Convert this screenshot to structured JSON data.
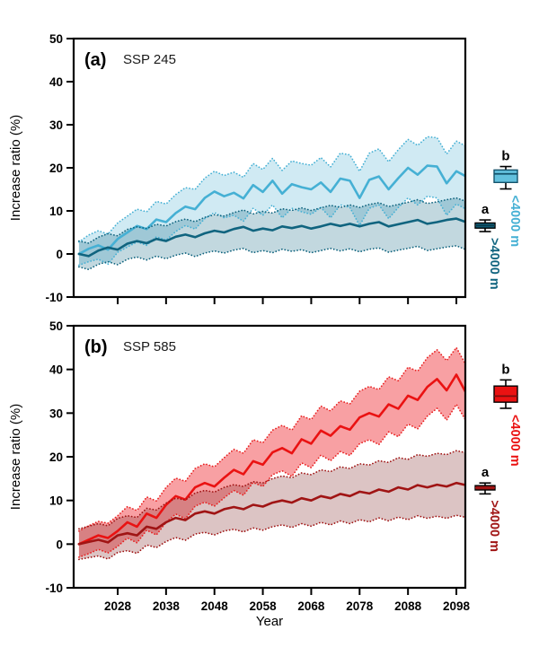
{
  "figure": {
    "background": "#ffffff",
    "axis_color": "#000000"
  },
  "chart_data": {
    "type": "line",
    "title": "",
    "xlabel": "Year",
    "ylabel": "Increase ratio (%)",
    "xlim": [
      2019,
      2100
    ],
    "ylim": [
      -10,
      50
    ],
    "grid": false,
    "x_tick_labels": [
      "2028",
      "2038",
      "2048",
      "2058",
      "2068",
      "2078",
      "2088",
      "2098"
    ],
    "x_tick_years": [
      2028,
      2038,
      2048,
      2058,
      2068,
      2078,
      2088,
      2098
    ],
    "y_tick_labels": [
      "50",
      "40",
      "30",
      "20",
      "10",
      "0",
      "-10"
    ],
    "y_tick_values": [
      50,
      40,
      30,
      20,
      10,
      0,
      -10
    ],
    "years": [
      2020,
      2022,
      2024,
      2026,
      2028,
      2030,
      2032,
      2034,
      2036,
      2038,
      2040,
      2042,
      2044,
      2046,
      2048,
      2050,
      2052,
      2054,
      2056,
      2058,
      2060,
      2062,
      2064,
      2066,
      2068,
      2070,
      2072,
      2074,
      2076,
      2078,
      2080,
      2082,
      2084,
      2086,
      2088,
      2090,
      2092,
      2094,
      2096,
      2098,
      2100
    ],
    "band_meaning": "shaded envelope with dotted borders around ensemble mean",
    "panels": [
      {
        "id": "a",
        "label": "(a)",
        "scenario": "SSP 245",
        "series": [
          {
            "name": "<4000 m",
            "significance": "b",
            "line_color": "#45b0d4",
            "dot_color": "#45b0d4",
            "band_fill": "rgba(120,195,220,0.35)",
            "mean": [
              0,
              1.2,
              2.0,
              1.0,
              3.5,
              5.0,
              6.5,
              5.8,
              8.0,
              7.4,
              9.5,
              11.0,
              10.4,
              13.0,
              14.5,
              13.4,
              14.2,
              12.9,
              16.0,
              14.4,
              17.0,
              14.0,
              16.2,
              15.5,
              15.0,
              16.6,
              14.4,
              17.5,
              17.0,
              13.0,
              17.2,
              18.0,
              15.0,
              17.6,
              20.0,
              18.4,
              20.5,
              20.3,
              16.4,
              19.2,
              18.0
            ],
            "upper": [
              2.8,
              4.4,
              5.4,
              4.6,
              7.2,
              8.8,
              10.4,
              9.8,
              12.2,
              11.6,
              13.8,
              15.4,
              15.0,
              17.6,
              19.2,
              18.2,
              19.0,
              17.8,
              21.0,
              19.6,
              22.2,
              19.4,
              21.6,
              21.0,
              20.6,
              22.4,
              20.2,
              23.4,
              23.0,
              19.2,
              23.4,
              24.4,
              21.4,
              24.2,
              26.6,
              25.2,
              27.2,
              27.0,
              23.2,
              26.2,
              25.0
            ],
            "lower": [
              -2.6,
              -1.8,
              -1.2,
              -2.4,
              0.4,
              1.6,
              2.8,
              2.0,
              4.0,
              3.2,
              5.2,
              6.6,
              5.8,
              8.2,
              9.6,
              8.4,
              9.0,
              7.6,
              10.6,
              9.0,
              11.4,
              8.4,
              10.6,
              9.8,
              9.2,
              10.8,
              8.4,
              11.4,
              10.8,
              6.6,
              10.6,
              11.4,
              8.2,
              10.8,
              13.0,
              11.4,
              13.4,
              13.0,
              9.0,
              11.6,
              10.4
            ],
            "box": {
              "whislo": 15.1,
              "q1": 16.6,
              "med": 18.6,
              "q3": 19.5,
              "whishi": 20.3,
              "fill": "#62c0dd",
              "edge": "#14536b",
              "median_color": "#14536b"
            }
          },
          {
            "name": ">4000 m",
            "significance": "a",
            "line_color": "#10647f",
            "dot_color": "#10647f",
            "band_fill": "rgba(30,110,135,0.27)",
            "mean": [
              0,
              -0.5,
              0.8,
              1.5,
              1.0,
              2.4,
              3.0,
              2.5,
              3.5,
              3.0,
              4.0,
              4.5,
              3.9,
              4.8,
              5.4,
              5.0,
              5.8,
              6.3,
              5.4,
              5.9,
              5.5,
              6.4,
              6.0,
              6.5,
              5.9,
              6.4,
              7.0,
              6.5,
              7.0,
              6.4,
              7.0,
              7.4,
              6.4,
              6.9,
              7.4,
              7.9,
              7.0,
              7.4,
              7.9,
              8.2,
              7.4
            ],
            "upper": [
              3.0,
              2.5,
              3.9,
              4.7,
              4.2,
              5.7,
              6.3,
              5.9,
              6.9,
              6.5,
              7.5,
              8.1,
              7.5,
              8.5,
              9.1,
              8.8,
              9.6,
              10.2,
              9.3,
              9.9,
              9.5,
              10.5,
              10.1,
              10.7,
              10.1,
              10.7,
              11.3,
              10.8,
              11.4,
              10.8,
              11.5,
              11.9,
              11.0,
              11.5,
              12.0,
              12.6,
              11.7,
              12.1,
              12.6,
              13.0,
              12.2
            ],
            "lower": [
              -3.0,
              -3.6,
              -2.4,
              -1.8,
              -2.5,
              -1.2,
              -0.7,
              -1.4,
              -0.5,
              -1.1,
              -0.3,
              0.2,
              -0.6,
              0.2,
              0.7,
              0.2,
              0.9,
              1.3,
              0.3,
              0.8,
              0.3,
              1.1,
              0.6,
              1.0,
              0.3,
              0.8,
              1.3,
              0.7,
              1.2,
              0.5,
              1.1,
              1.4,
              0.4,
              0.9,
              1.3,
              1.8,
              0.8,
              1.2,
              1.6,
              1.9,
              1.0
            ],
            "box": {
              "whislo": 5.2,
              "q1": 6.0,
              "med": 6.6,
              "q3": 7.2,
              "whishi": 7.9,
              "fill": "#10647f",
              "edge": "#000000",
              "median_color": "#0a3c4d"
            }
          }
        ]
      },
      {
        "id": "b",
        "label": "(b)",
        "scenario": "SSP 585",
        "series": [
          {
            "name": "<4000 m",
            "significance": "b",
            "line_color": "#ea1212",
            "dot_color": "#e82020",
            "band_fill": "rgba(240,45,50,0.45)",
            "mean": [
              0,
              1.0,
              2.0,
              1.4,
              3.0,
              5.0,
              4.0,
              7.0,
              6.0,
              9.0,
              11.0,
              10.2,
              13.0,
              14.0,
              13.2,
              15.2,
              17.0,
              16.0,
              19.0,
              18.2,
              21.0,
              22.0,
              20.8,
              24.0,
              23.0,
              26.0,
              24.8,
              27.0,
              26.2,
              29.0,
              30.0,
              29.2,
              32.0,
              31.0,
              34.0,
              33.0,
              36.0,
              37.8,
              35.2,
              38.8,
              34.6
            ],
            "upper": [
              3.0,
              4.2,
              5.2,
              4.8,
              6.5,
              8.6,
              7.7,
              10.8,
              9.9,
              13.0,
              15.1,
              14.4,
              17.3,
              18.4,
              17.7,
              19.8,
              21.7,
              20.8,
              23.9,
              23.2,
              26.1,
              27.2,
              26.1,
              29.4,
              28.5,
              31.6,
              30.5,
              32.8,
              32.1,
              35.0,
              36.1,
              35.4,
              38.3,
              37.4,
              40.5,
              39.6,
              42.7,
              44.5,
              42.0,
              45.0,
              41.0
            ],
            "lower": [
              -3.0,
              -2.2,
              -1.2,
              -2.0,
              -0.5,
              1.4,
              0.3,
              3.2,
              2.1,
              5.0,
              6.9,
              5.8,
              8.7,
              9.6,
              8.7,
              10.6,
              12.3,
              11.2,
              14.1,
              13.2,
              15.9,
              16.8,
              15.5,
              18.6,
              17.5,
              20.4,
              19.1,
              21.2,
              20.3,
              23.0,
              23.9,
              22.8,
              25.7,
              24.6,
              27.5,
              26.4,
              29.3,
              31.1,
              28.4,
              32.0,
              28.2
            ],
            "box": {
              "whislo": 31.1,
              "q1": 32.5,
              "med": 33.9,
              "q3": 36.2,
              "whishi": 37.6,
              "fill": "#ea1212",
              "edge": "#000000",
              "median_color": "#7a0d0d"
            }
          },
          {
            "name": ">4000 m",
            "significance": "a",
            "line_color": "#a01414",
            "dot_color": "#a01414",
            "band_fill": "rgba(140,60,60,0.30)",
            "mean": [
              0,
              0.5,
              1.0,
              0.4,
              2.0,
              2.5,
              2.0,
              4.0,
              3.5,
              5.0,
              6.0,
              5.5,
              7.0,
              7.5,
              7.0,
              8.0,
              8.5,
              8.0,
              9.0,
              8.6,
              9.5,
              10.0,
              9.5,
              10.5,
              10.0,
              11.0,
              10.5,
              11.5,
              11.0,
              12.0,
              11.6,
              12.5,
              12.0,
              13.0,
              12.5,
              13.5,
              13.0,
              13.6,
              13.2,
              14.0,
              13.5
            ],
            "upper": [
              3.5,
              4.1,
              4.7,
              4.2,
              5.9,
              6.5,
              6.1,
              8.2,
              7.8,
              9.4,
              10.5,
              10.1,
              11.7,
              12.3,
              11.9,
              13.0,
              13.6,
              13.2,
              14.3,
              14.0,
              15.0,
              15.6,
              15.2,
              16.3,
              15.9,
              17.0,
              16.6,
              17.7,
              17.3,
              18.4,
              18.1,
              19.1,
              18.7,
              19.8,
              19.4,
              20.5,
              20.1,
              20.8,
              20.5,
              21.4,
              20.9
            ],
            "lower": [
              -3.5,
              -3.1,
              -2.7,
              -3.4,
              -1.9,
              -1.5,
              -2.1,
              -0.2,
              -0.8,
              0.6,
              1.5,
              0.9,
              2.3,
              2.7,
              2.1,
              3.0,
              3.4,
              2.8,
              3.7,
              3.2,
              4.0,
              4.4,
              3.8,
              4.7,
              4.1,
              5.0,
              4.4,
              5.3,
              4.7,
              5.6,
              5.1,
              6.0,
              5.3,
              6.2,
              5.6,
              6.5,
              5.9,
              6.4,
              5.9,
              6.6,
              6.1
            ],
            "box": {
              "whislo": 11.5,
              "q1": 12.4,
              "med": 12.9,
              "q3": 13.4,
              "whishi": 14.0,
              "fill": "#a01414",
              "edge": "#000000",
              "median_color": "#a01414"
            }
          }
        ]
      }
    ]
  }
}
